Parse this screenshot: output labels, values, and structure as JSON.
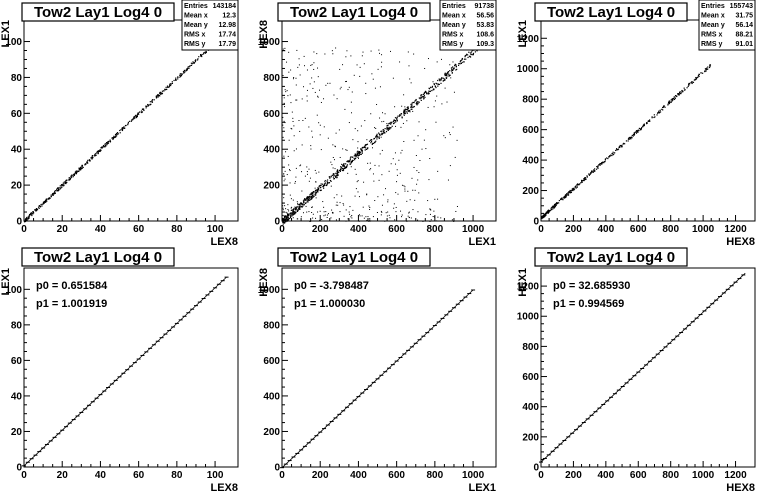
{
  "chart_data": [
    {
      "type": "scatter",
      "title": "Tow2 Lay1 Log4 0",
      "xlabel": "LEX8",
      "ylabel": "LEX1",
      "xlim": [
        0,
        112
      ],
      "ylim": [
        0,
        112
      ],
      "xticks": [
        0,
        20,
        40,
        60,
        80,
        100
      ],
      "yticks": [
        0,
        20,
        40,
        60,
        80,
        100
      ],
      "stats": [
        [
          "Entries",
          "143184"
        ],
        [
          "Mean x",
          "12.3"
        ],
        [
          "Mean y",
          "12.98"
        ],
        [
          "RMS x",
          "17.74"
        ],
        [
          "RMS y",
          "17.79"
        ]
      ],
      "fit": [],
      "points": {
        "slope": 0.995,
        "intercept": 0.5,
        "xmax": 103,
        "spread": 0.9,
        "n": 520,
        "outliers": 0,
        "seed": 11
      }
    },
    {
      "type": "scatter",
      "title": "Tow2 Lay1 Log4 0",
      "xlabel": "LEX1",
      "ylabel": "HEX8",
      "xlim": [
        0,
        1120
      ],
      "ylim": [
        0,
        1120
      ],
      "xticks": [
        0,
        200,
        400,
        600,
        800,
        1000
      ],
      "yticks": [
        0,
        200,
        400,
        600,
        800,
        1000
      ],
      "stats": [
        [
          "Entries",
          "91738"
        ],
        [
          "Mean x",
          "56.56"
        ],
        [
          "Mean y",
          "53.83"
        ],
        [
          "RMS x",
          "108.6"
        ],
        [
          "RMS y",
          "109.3"
        ]
      ],
      "fit": [],
      "points": {
        "slope": 0.95,
        "intercept": 0,
        "xmax": 1020,
        "spread": 18,
        "n": 700,
        "outliers": 520,
        "seed": 23
      }
    },
    {
      "type": "scatter",
      "title": "Tow2 Lay1 Log4 0",
      "xlabel": "HEX8",
      "ylabel": "LEX1",
      "xlim": [
        0,
        1320
      ],
      "ylim": [
        0,
        1320
      ],
      "xticks": [
        0,
        200,
        400,
        600,
        800,
        1000,
        1200
      ],
      "yticks": [
        0,
        200,
        400,
        600,
        800,
        1000,
        1200
      ],
      "stats": [
        [
          "Entries",
          "155743"
        ],
        [
          "Mean x",
          "31.75"
        ],
        [
          "Mean y",
          "56.14"
        ],
        [
          "RMS x",
          "88.21"
        ],
        [
          "RMS y",
          "91.01"
        ]
      ],
      "fit": [],
      "points": {
        "slope": 0.96,
        "intercept": 25,
        "xmax": 1050,
        "spread": 10,
        "n": 420,
        "outliers": 0,
        "seed": 37
      }
    },
    {
      "type": "line",
      "title": "Tow2 Lay1 Log4 0",
      "xlabel": "LEX8",
      "ylabel": "LEX1",
      "xlim": [
        0,
        112
      ],
      "ylim": [
        0,
        112
      ],
      "xticks": [
        0,
        20,
        40,
        60,
        80,
        100
      ],
      "yticks": [
        0,
        20,
        40,
        60,
        80,
        100
      ],
      "stats": [],
      "fit": [
        [
          "p0",
          "0.651584"
        ],
        [
          "p1",
          "1.001919"
        ]
      ],
      "profile": {
        "p0": 0.651584,
        "p1": 1.001919,
        "xmin": 0,
        "xmax": 106,
        "step": 2
      }
    },
    {
      "type": "line",
      "title": "Tow2 Lay1 Log4 0",
      "xlabel": "LEX1",
      "ylabel": "HEX8",
      "xlim": [
        0,
        1120
      ],
      "ylim": [
        0,
        1120
      ],
      "xticks": [
        0,
        200,
        400,
        600,
        800,
        1000
      ],
      "yticks": [
        0,
        200,
        400,
        600,
        800,
        1000
      ],
      "stats": [],
      "fit": [
        [
          "p0",
          "-3.798487"
        ],
        [
          "p1",
          "1.000030"
        ]
      ],
      "profile": {
        "p0": -3.798487,
        "p1": 1.00003,
        "xmin": 0,
        "xmax": 1000,
        "step": 20
      }
    },
    {
      "type": "line",
      "title": "Tow2 Lay1 Log4 0",
      "xlabel": "HEX8",
      "ylabel": "HEX1",
      "xlim": [
        0,
        1320
      ],
      "ylim": [
        0,
        1320
      ],
      "xticks": [
        0,
        200,
        400,
        600,
        800,
        1000,
        1200
      ],
      "yticks": [
        0,
        200,
        400,
        600,
        800,
        1000,
        1200
      ],
      "stats": [],
      "fit": [
        [
          "p0",
          "32.685930"
        ],
        [
          "p1",
          "0.994569"
        ]
      ],
      "profile": {
        "p0": 32.68593,
        "p1": 0.994569,
        "xmin": 0,
        "xmax": 1260,
        "step": 24
      }
    }
  ]
}
